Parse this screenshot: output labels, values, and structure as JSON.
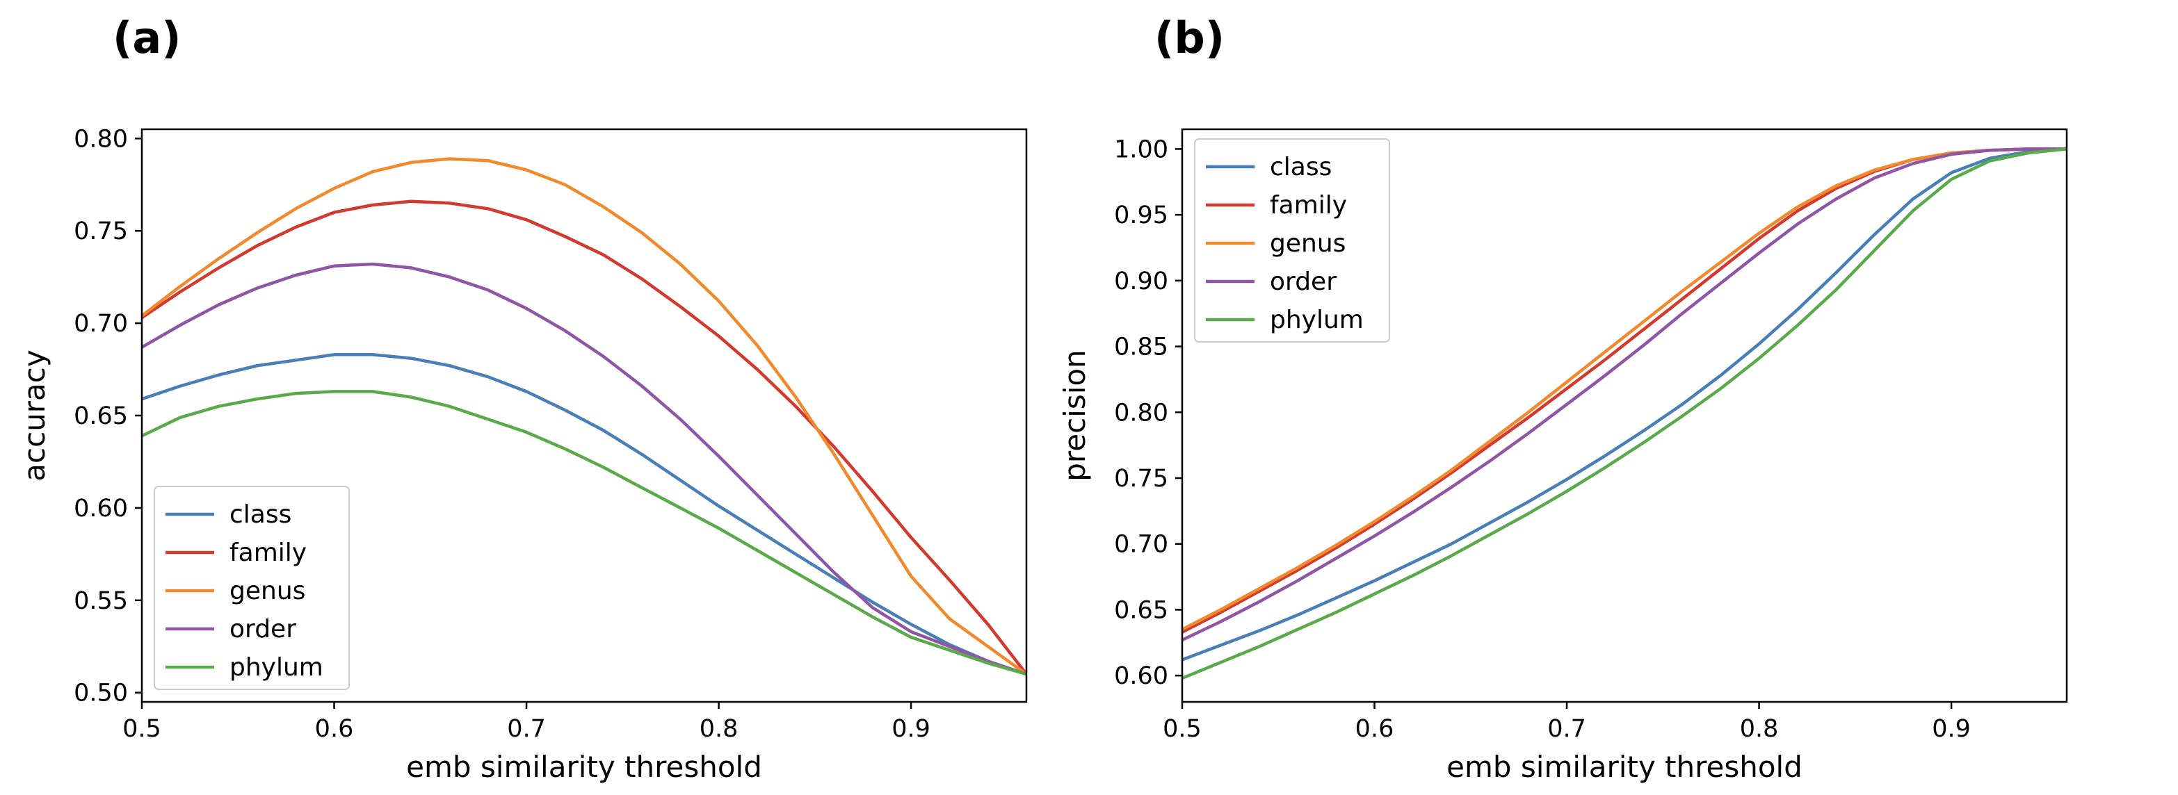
{
  "panels": {
    "a_label": "(a)",
    "b_label": "(b)"
  },
  "chart_data": [
    {
      "type": "line",
      "panel": "(a)",
      "xlabel": "emb similarity threshold",
      "ylabel": "accuracy",
      "xlim": [
        0.5,
        0.96
      ],
      "ylim": [
        0.495,
        0.805
      ],
      "xticks": [
        0.5,
        0.6,
        0.7,
        0.8,
        0.9
      ],
      "xtick_labels": [
        "0.5",
        "0.6",
        "0.7",
        "0.8",
        "0.9"
      ],
      "yticks": [
        0.5,
        0.55,
        0.6,
        0.65,
        0.7,
        0.75,
        0.8
      ],
      "ytick_labels": [
        "0.50",
        "0.55",
        "0.60",
        "0.65",
        "0.70",
        "0.75",
        "0.80"
      ],
      "grid": false,
      "legend_position": "lower-left",
      "x": [
        0.5,
        0.52,
        0.54,
        0.56,
        0.58,
        0.6,
        0.62,
        0.64,
        0.66,
        0.68,
        0.7,
        0.72,
        0.74,
        0.76,
        0.78,
        0.8,
        0.82,
        0.84,
        0.86,
        0.88,
        0.9,
        0.92,
        0.94,
        0.96
      ],
      "series": [
        {
          "name": "class",
          "color": "#4a7fb5",
          "values": [
            0.659,
            0.666,
            0.672,
            0.677,
            0.68,
            0.683,
            0.683,
            0.681,
            0.677,
            0.671,
            0.663,
            0.653,
            0.642,
            0.629,
            0.615,
            0.601,
            0.588,
            0.575,
            0.562,
            0.549,
            0.537,
            0.526,
            0.517,
            0.51
          ]
        },
        {
          "name": "family",
          "color": "#d03b2f",
          "values": [
            0.703,
            0.717,
            0.73,
            0.742,
            0.752,
            0.76,
            0.764,
            0.766,
            0.765,
            0.762,
            0.756,
            0.747,
            0.737,
            0.724,
            0.709,
            0.693,
            0.675,
            0.655,
            0.633,
            0.609,
            0.584,
            0.561,
            0.537,
            0.51
          ]
        },
        {
          "name": "genus",
          "color": "#f08a2f",
          "values": [
            0.704,
            0.72,
            0.735,
            0.749,
            0.762,
            0.773,
            0.782,
            0.787,
            0.789,
            0.788,
            0.783,
            0.775,
            0.763,
            0.749,
            0.732,
            0.712,
            0.688,
            0.66,
            0.629,
            0.596,
            0.563,
            0.54,
            0.525,
            0.51
          ]
        },
        {
          "name": "order",
          "color": "#8e56a5",
          "values": [
            0.687,
            0.699,
            0.71,
            0.719,
            0.726,
            0.731,
            0.732,
            0.73,
            0.725,
            0.718,
            0.708,
            0.696,
            0.682,
            0.666,
            0.648,
            0.628,
            0.607,
            0.586,
            0.565,
            0.546,
            0.533,
            0.525,
            0.517,
            0.51
          ]
        },
        {
          "name": "phylum",
          "color": "#5ba94c",
          "values": [
            0.639,
            0.649,
            0.655,
            0.659,
            0.662,
            0.663,
            0.663,
            0.66,
            0.655,
            0.648,
            0.641,
            0.632,
            0.622,
            0.611,
            0.6,
            0.589,
            0.577,
            0.565,
            0.553,
            0.541,
            0.53,
            0.523,
            0.516,
            0.51
          ]
        }
      ]
    },
    {
      "type": "line",
      "panel": "(b)",
      "xlabel": "emb similarity threshold",
      "ylabel": "precision",
      "xlim": [
        0.5,
        0.96
      ],
      "ylim": [
        0.58,
        1.015
      ],
      "xticks": [
        0.5,
        0.6,
        0.7,
        0.8,
        0.9
      ],
      "xtick_labels": [
        "0.5",
        "0.6",
        "0.7",
        "0.8",
        "0.9"
      ],
      "yticks": [
        0.6,
        0.65,
        0.7,
        0.75,
        0.8,
        0.85,
        0.9,
        0.95,
        1.0
      ],
      "ytick_labels": [
        "0.60",
        "0.65",
        "0.70",
        "0.75",
        "0.80",
        "0.85",
        "0.90",
        "0.95",
        "1.00"
      ],
      "grid": false,
      "legend_position": "upper-left",
      "x": [
        0.5,
        0.52,
        0.54,
        0.56,
        0.58,
        0.6,
        0.62,
        0.64,
        0.66,
        0.68,
        0.7,
        0.72,
        0.74,
        0.76,
        0.78,
        0.8,
        0.82,
        0.84,
        0.86,
        0.88,
        0.9,
        0.92,
        0.94,
        0.96
      ],
      "series": [
        {
          "name": "class",
          "color": "#4a7fb5",
          "values": [
            0.612,
            0.623,
            0.634,
            0.646,
            0.659,
            0.672,
            0.686,
            0.7,
            0.716,
            0.732,
            0.749,
            0.767,
            0.786,
            0.806,
            0.828,
            0.852,
            0.878,
            0.906,
            0.935,
            0.962,
            0.982,
            0.993,
            0.998,
            1.0
          ]
        },
        {
          "name": "family",
          "color": "#d03b2f",
          "values": [
            0.633,
            0.648,
            0.664,
            0.68,
            0.697,
            0.715,
            0.734,
            0.754,
            0.775,
            0.796,
            0.818,
            0.84,
            0.863,
            0.886,
            0.909,
            0.932,
            0.953,
            0.97,
            0.983,
            0.992,
            0.997,
            0.999,
            1.0,
            1.0
          ]
        },
        {
          "name": "genus",
          "color": "#f08a2f",
          "values": [
            0.635,
            0.65,
            0.666,
            0.682,
            0.699,
            0.717,
            0.736,
            0.756,
            0.778,
            0.8,
            0.823,
            0.846,
            0.869,
            0.892,
            0.914,
            0.936,
            0.956,
            0.972,
            0.984,
            0.992,
            0.997,
            0.999,
            1.0,
            1.0
          ]
        },
        {
          "name": "order",
          "color": "#8e56a5",
          "values": [
            0.627,
            0.641,
            0.656,
            0.672,
            0.689,
            0.706,
            0.724,
            0.743,
            0.763,
            0.784,
            0.806,
            0.828,
            0.851,
            0.875,
            0.898,
            0.921,
            0.943,
            0.962,
            0.978,
            0.989,
            0.996,
            0.999,
            1.0,
            1.0
          ]
        },
        {
          "name": "phylum",
          "color": "#5ba94c",
          "values": [
            0.598,
            0.61,
            0.622,
            0.635,
            0.648,
            0.662,
            0.676,
            0.691,
            0.707,
            0.723,
            0.74,
            0.758,
            0.777,
            0.797,
            0.818,
            0.841,
            0.866,
            0.893,
            0.923,
            0.953,
            0.977,
            0.991,
            0.997,
            1.0
          ]
        }
      ]
    }
  ]
}
